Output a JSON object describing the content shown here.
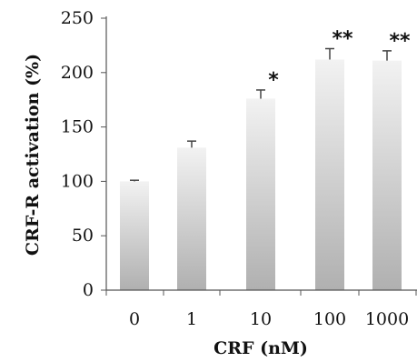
{
  "chart_data": {
    "type": "bar",
    "title": "",
    "xlabel": "CRF (nM)",
    "ylabel": "CRF-R activation (%)",
    "categories": [
      "0",
      "1",
      "10",
      "100",
      "1000"
    ],
    "values": [
      100,
      131,
      176,
      212,
      211
    ],
    "errors": [
      1,
      6,
      8,
      10,
      9
    ],
    "significance": [
      "",
      "",
      "*",
      "**",
      "**"
    ],
    "ylim": [
      0,
      250
    ],
    "yticks": [
      0,
      50,
      100,
      150,
      200,
      250
    ],
    "grid": false,
    "legend": "none",
    "bar_gradient": [
      "#f2f2f2",
      "#b0b0b0"
    ],
    "axis_color": "#555555"
  }
}
